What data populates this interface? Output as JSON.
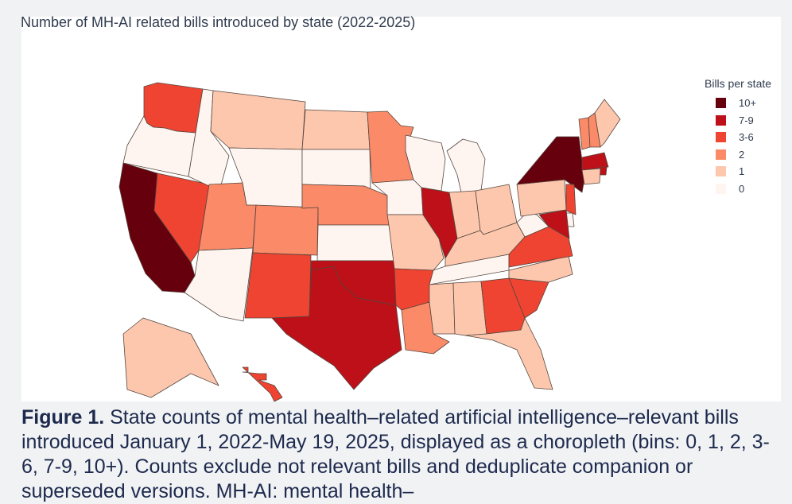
{
  "chart": {
    "title": "Number of MH-AI related bills introduced by state (2022-2025)"
  },
  "legend": {
    "title": "Bills per state",
    "items": [
      {
        "label": "10+",
        "color": "#67000d"
      },
      {
        "label": "7-9",
        "color": "#bd1018"
      },
      {
        "label": "3-6",
        "color": "#ee4431"
      },
      {
        "label": "2",
        "color": "#fb8a68"
      },
      {
        "label": "1",
        "color": "#fdc7ae"
      },
      {
        "label": "0",
        "color": "#fff5f0"
      }
    ]
  },
  "chart_data": {
    "type": "choropleth",
    "bins": [
      "0",
      "1",
      "2",
      "3-6",
      "7-9",
      "10+"
    ],
    "states": {
      "WA": "3-6",
      "OR": "0",
      "CA": "10+",
      "NV": "3-6",
      "ID": "0",
      "MT": "1",
      "WY": "0",
      "UT": "2",
      "AZ": "0",
      "CO": "2",
      "NM": "3-6",
      "ND": "1",
      "SD": "0",
      "NE": "2",
      "KS": "0",
      "OK": "7-9",
      "TX": "7-9",
      "MN": "2",
      "IA": "0",
      "MO": "1",
      "AR": "3-6",
      "LA": "2",
      "WI": "0",
      "IL": "7-9",
      "MI": "0",
      "IN": "1",
      "OH": "1",
      "KY": "1",
      "TN": "0",
      "MS": "1",
      "AL": "1",
      "GA": "3-6",
      "FL": "1",
      "SC": "3-6",
      "NC": "1",
      "VA": "3-6",
      "WV": "0",
      "PA": "1",
      "NY": "10+",
      "VT": "2",
      "NH": "2",
      "ME": "1",
      "MA": "7-9",
      "RI": "7-9",
      "CT": "1",
      "NJ": "3-6",
      "DE": "0",
      "MD": "7-9",
      "AK": "1",
      "HI": "3-6"
    }
  },
  "caption": {
    "label": "Figure 1.",
    "text": " State counts of mental health–related artificial intelligence–relevant bills introduced January 1, 2022-May 19, 2025, displayed as a choropleth (bins: 0, 1, 2, 3-6, 7-9, 10+). Counts exclude not relevant bills and deduplicate companion or superseded versions. MH-AI: mental health–"
  }
}
